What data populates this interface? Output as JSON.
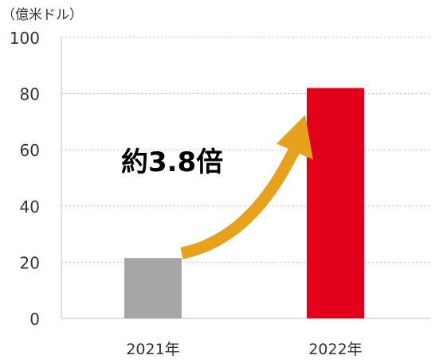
{
  "chart_data": {
    "type": "bar",
    "unit_label": "（億米ドル）",
    "categories": [
      "2021年",
      "2022年"
    ],
    "values": [
      21.5,
      82
    ],
    "ylim": [
      0,
      100
    ],
    "yticks": [
      0,
      20,
      40,
      60,
      80,
      100
    ],
    "grid": true,
    "bar_colors": [
      "#a6a6a6",
      "#e2001a"
    ],
    "annotation": "約3.8倍",
    "arrow_color": "#e8a11c"
  }
}
